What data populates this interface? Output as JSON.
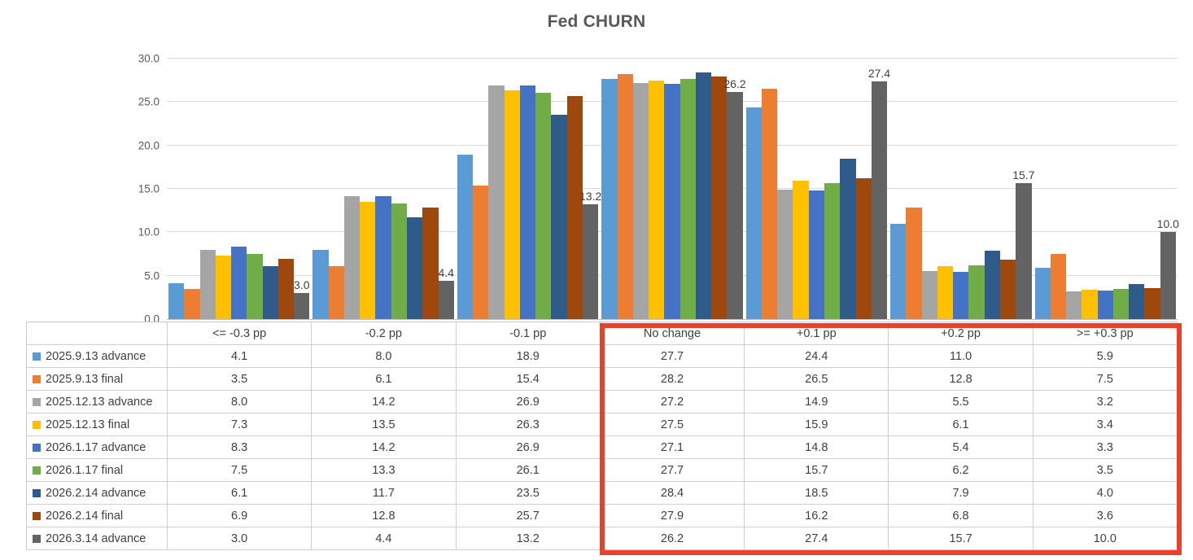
{
  "chart_data": {
    "type": "bar",
    "title": "Fed CHURN",
    "categories": [
      "<= -0.3 pp",
      "-0.2 pp",
      "-0.1 pp",
      "No change",
      "+0.1 pp",
      "+0.2 pp",
      ">= +0.3 pp"
    ],
    "series": [
      {
        "name": "2025.9.13 advance",
        "color": "#5B9BD5",
        "values": [
          4.1,
          8.0,
          18.9,
          27.7,
          24.4,
          11.0,
          5.9
        ]
      },
      {
        "name": "2025.9.13 final",
        "color": "#ED7D31",
        "values": [
          3.5,
          6.1,
          15.4,
          28.2,
          26.5,
          12.8,
          7.5
        ]
      },
      {
        "name": "2025.12.13 advance",
        "color": "#A5A5A5",
        "values": [
          8.0,
          14.2,
          26.9,
          27.2,
          14.9,
          5.5,
          3.2
        ]
      },
      {
        "name": "2025.12.13 final",
        "color": "#FFC000",
        "values": [
          7.3,
          13.5,
          26.3,
          27.5,
          15.9,
          6.1,
          3.4
        ]
      },
      {
        "name": "2026.1.17 advance",
        "color": "#4472C4",
        "values": [
          8.3,
          14.2,
          26.9,
          27.1,
          14.8,
          5.4,
          3.3
        ]
      },
      {
        "name": "2026.1.17 final",
        "color": "#70AD47",
        "values": [
          7.5,
          13.3,
          26.1,
          27.7,
          15.7,
          6.2,
          3.5
        ]
      },
      {
        "name": "2026.2.14 advance",
        "color": "#2E5B8A",
        "values": [
          6.1,
          11.7,
          23.5,
          28.4,
          18.5,
          7.9,
          4.0
        ]
      },
      {
        "name": "2026.2.14 final",
        "color": "#9E480E",
        "values": [
          6.9,
          12.8,
          25.7,
          27.9,
          16.2,
          6.8,
          3.6
        ]
      },
      {
        "name": "2026.3.14 advance",
        "color": "#636363",
        "values": [
          3.0,
          4.4,
          13.2,
          26.2,
          27.4,
          15.7,
          10.0
        ],
        "data_labels": true
      }
    ],
    "ylim": [
      0,
      30
    ],
    "ytick_step": 5,
    "ytick_labels": [
      "0.0",
      "5.0",
      "10.0",
      "15.0",
      "20.0",
      "25.0",
      "30.0"
    ],
    "grid": true,
    "legend_position": "data-table-left-column",
    "data_table_shown": true,
    "value_decimals": 1
  },
  "annotation": {
    "shape": "rectangle",
    "color": "#e8422c",
    "highlighted_categories": [
      "No change",
      "+0.1 pp",
      "+0.2 pp",
      ">= +0.3 pp"
    ]
  }
}
